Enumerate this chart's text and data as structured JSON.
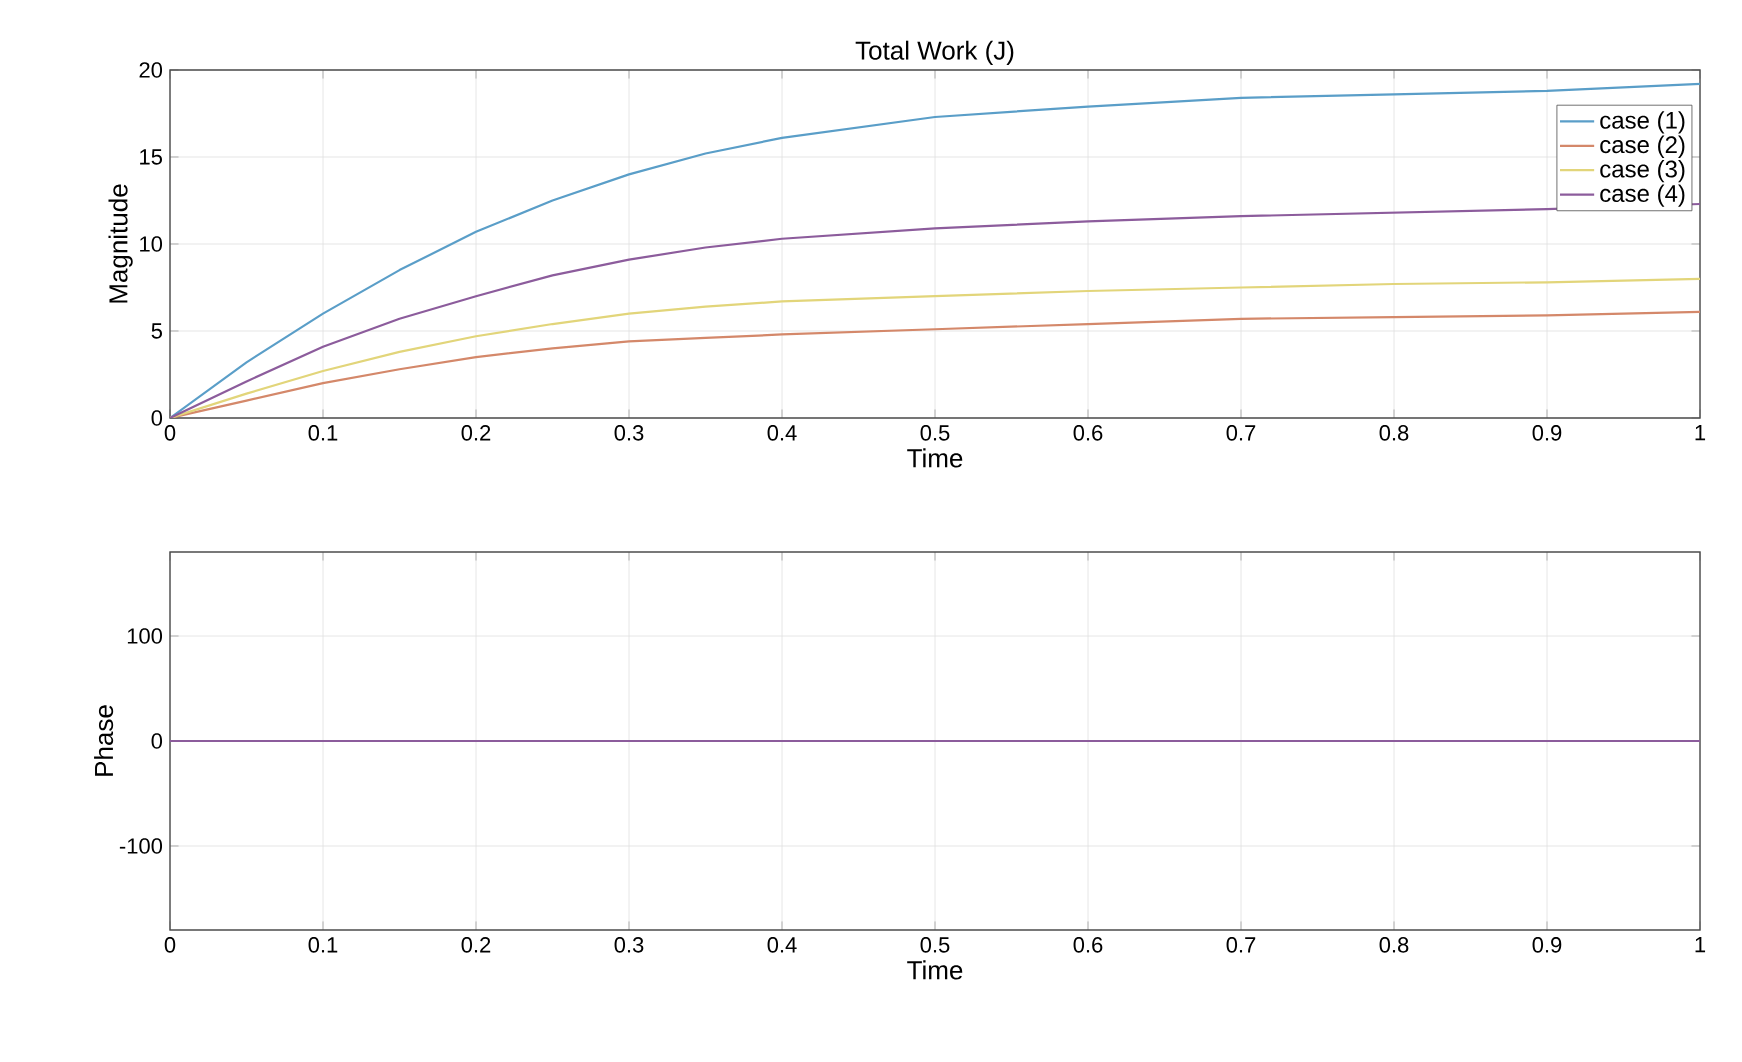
{
  "chart_data": [
    {
      "type": "line",
      "title": "Total Work (J)",
      "xlabel": "Time",
      "ylabel": "Magnitude",
      "x": [
        0,
        0.05,
        0.1,
        0.15,
        0.2,
        0.25,
        0.3,
        0.35,
        0.4,
        0.5,
        0.6,
        0.7,
        0.8,
        0.9,
        1
      ],
      "series": [
        {
          "name": "case (1)",
          "color": "#5a9ec8",
          "values": [
            0,
            3.2,
            6.0,
            8.5,
            10.7,
            12.5,
            14.0,
            15.2,
            16.1,
            17.3,
            17.9,
            18.4,
            18.6,
            18.8,
            19.2
          ]
        },
        {
          "name": "case (2)",
          "color": "#d4886a",
          "values": [
            0,
            1.0,
            2.0,
            2.8,
            3.5,
            4.0,
            4.4,
            4.6,
            4.8,
            5.1,
            5.4,
            5.7,
            5.8,
            5.9,
            6.1
          ]
        },
        {
          "name": "case (3)",
          "color": "#e2d57a",
          "values": [
            0,
            1.4,
            2.7,
            3.8,
            4.7,
            5.4,
            6.0,
            6.4,
            6.7,
            7.0,
            7.3,
            7.5,
            7.7,
            7.8,
            8.0
          ]
        },
        {
          "name": "case (4)",
          "color": "#8c5c9c",
          "values": [
            0,
            2.1,
            4.1,
            5.7,
            7.0,
            8.2,
            9.1,
            9.8,
            10.3,
            10.9,
            11.3,
            11.6,
            11.8,
            12.0,
            12.3
          ]
        }
      ],
      "xlim": [
        0,
        1
      ],
      "ylim": [
        0,
        20
      ],
      "xticks": [
        0,
        0.1,
        0.2,
        0.3,
        0.4,
        0.5,
        0.6,
        0.7,
        0.8,
        0.9,
        1
      ],
      "yticks": [
        0,
        5,
        10,
        15,
        20
      ],
      "grid": true,
      "legend": "top right"
    },
    {
      "type": "line",
      "xlabel": "Time",
      "ylabel": "Phase",
      "x": [
        0,
        1
      ],
      "series": [
        {
          "color": "#8c5c9c",
          "values": [
            0,
            0
          ]
        }
      ],
      "xlim": [
        0,
        1
      ],
      "ylim": [
        -180,
        180
      ],
      "xticks": [
        0,
        0.1,
        0.2,
        0.3,
        0.4,
        0.5,
        0.6,
        0.7,
        0.8,
        0.9,
        1
      ],
      "yticks": [
        -100,
        0,
        100
      ],
      "grid": true
    }
  ]
}
